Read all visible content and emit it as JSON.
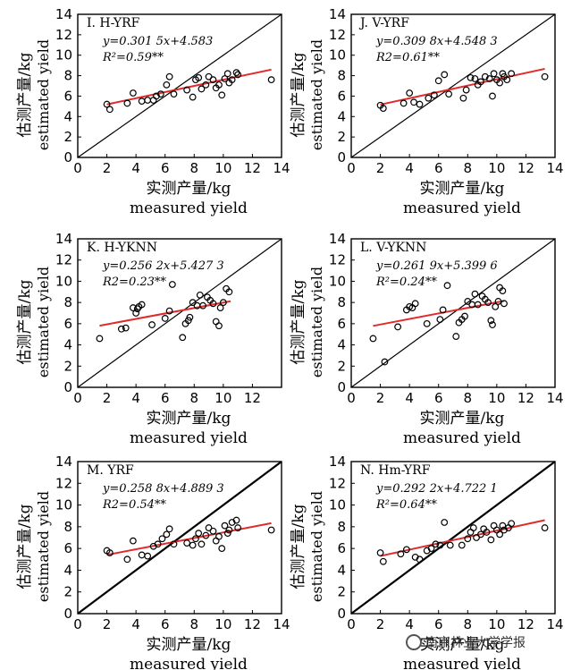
{
  "watermark": {
    "text": "南京林业大学学报",
    "icon": "wechat-icon"
  },
  "style": {
    "line_color": "#e02b2b",
    "marker_color": "#000000",
    "diag_color": "#000000"
  },
  "chart_data": [
    {
      "type": "scatter",
      "title": "I. H-YRF",
      "xlabel_zh": "实测产量/kg",
      "xlabel_en": "measured yield",
      "ylabel_zh": "估测产量/kg",
      "ylabel_en": "estimated yield",
      "xlim": [
        0,
        14
      ],
      "ylim": [
        0,
        14
      ],
      "xticks": [
        0,
        2,
        4,
        6,
        8,
        10,
        12,
        14
      ],
      "yticks": [
        0,
        2,
        4,
        6,
        8,
        10,
        12,
        14
      ],
      "equation": "y=0.301 5x+4.583",
      "r2": "R²=0.59**",
      "fit": {
        "slope": 0.3015,
        "intercept": 4.583,
        "x_range": [
          2,
          13.3
        ]
      },
      "points": [
        [
          2,
          5.2
        ],
        [
          2.2,
          4.7
        ],
        [
          3.4,
          5.3
        ],
        [
          3.8,
          6.3
        ],
        [
          4.4,
          5.5
        ],
        [
          4.8,
          5.6
        ],
        [
          5.2,
          5.6
        ],
        [
          5.4,
          6.0
        ],
        [
          5.7,
          6.2
        ],
        [
          6.1,
          7.1
        ],
        [
          6.3,
          7.9
        ],
        [
          6.6,
          6.2
        ],
        [
          7.5,
          6.6
        ],
        [
          7.9,
          5.9
        ],
        [
          8.1,
          7.6
        ],
        [
          8.3,
          7.8
        ],
        [
          8.5,
          6.7
        ],
        [
          8.8,
          7.1
        ],
        [
          9.0,
          7.9
        ],
        [
          9.3,
          7.6
        ],
        [
          9.5,
          6.8
        ],
        [
          9.7,
          7.1
        ],
        [
          9.9,
          6.1
        ],
        [
          10.1,
          7.7
        ],
        [
          10.3,
          8.2
        ],
        [
          10.4,
          7.3
        ],
        [
          10.6,
          7.6
        ],
        [
          10.9,
          8.3
        ],
        [
          11.0,
          8.1
        ],
        [
          13.3,
          7.6
        ]
      ]
    },
    {
      "type": "scatter",
      "title": "J. V-YRF",
      "xlabel_zh": "实测产量/kg",
      "xlabel_en": "measured yield",
      "ylabel_zh": "估测产量/kg",
      "ylabel_en": "estimated yield",
      "xlim": [
        0,
        14
      ],
      "ylim": [
        0,
        14
      ],
      "xticks": [
        0,
        2,
        4,
        6,
        8,
        10,
        12,
        14
      ],
      "yticks": [
        0,
        2,
        4,
        6,
        8,
        10,
        12,
        14
      ],
      "equation": "y=0.309 8x+4.548 3",
      "r2": "R2=0.61**",
      "fit": {
        "slope": 0.3098,
        "intercept": 4.5483,
        "x_range": [
          2,
          13.3
        ]
      },
      "points": [
        [
          2,
          5.1
        ],
        [
          2.2,
          4.8
        ],
        [
          3.6,
          5.3
        ],
        [
          4.0,
          6.3
        ],
        [
          4.3,
          5.4
        ],
        [
          4.7,
          5.2
        ],
        [
          5.3,
          5.8
        ],
        [
          5.7,
          6.1
        ],
        [
          6.0,
          7.5
        ],
        [
          6.4,
          8.1
        ],
        [
          6.7,
          6.2
        ],
        [
          7.7,
          5.8
        ],
        [
          7.9,
          6.6
        ],
        [
          8.2,
          7.8
        ],
        [
          8.5,
          7.7
        ],
        [
          8.7,
          7.1
        ],
        [
          8.9,
          7.4
        ],
        [
          9.2,
          7.9
        ],
        [
          9.5,
          7.7
        ],
        [
          9.7,
          6.0
        ],
        [
          9.8,
          8.2
        ],
        [
          10.0,
          7.6
        ],
        [
          10.2,
          7.3
        ],
        [
          10.4,
          8.2
        ],
        [
          10.5,
          7.9
        ],
        [
          10.7,
          7.6
        ],
        [
          11.0,
          8.2
        ],
        [
          13.3,
          7.9
        ]
      ]
    },
    {
      "type": "scatter",
      "title": "K. H-YKNN",
      "xlabel_zh": "实测产量/kg",
      "xlabel_en": "measured yield",
      "ylabel_zh": "估测产量/kg",
      "ylabel_en": "estimated yield",
      "xlim": [
        0,
        14
      ],
      "ylim": [
        0,
        14
      ],
      "xticks": [
        0,
        2,
        4,
        6,
        8,
        10,
        12
      ],
      "yticks": [
        0,
        2,
        4,
        6,
        8,
        10,
        12,
        14
      ],
      "equation": "y=0.256 2x+5.427 3",
      "r2": "R2=0.23**",
      "fit": {
        "slope": 0.2562,
        "intercept": 5.4273,
        "x_range": [
          1.5,
          10.5
        ]
      },
      "points": [
        [
          1.5,
          4.6
        ],
        [
          3.0,
          5.5
        ],
        [
          3.3,
          5.6
        ],
        [
          3.8,
          7.5
        ],
        [
          4.0,
          7.0
        ],
        [
          4.1,
          7.4
        ],
        [
          4.2,
          7.6
        ],
        [
          4.4,
          7.8
        ],
        [
          5.1,
          5.9
        ],
        [
          6.0,
          6.5
        ],
        [
          6.3,
          7.2
        ],
        [
          6.5,
          9.7
        ],
        [
          7.2,
          4.7
        ],
        [
          7.4,
          6.0
        ],
        [
          7.6,
          6.3
        ],
        [
          7.7,
          6.6
        ],
        [
          7.9,
          8.0
        ],
        [
          8.2,
          7.7
        ],
        [
          8.4,
          8.7
        ],
        [
          8.6,
          7.7
        ],
        [
          8.9,
          8.5
        ],
        [
          9.1,
          8.2
        ],
        [
          9.3,
          7.9
        ],
        [
          9.5,
          6.2
        ],
        [
          9.7,
          5.8
        ],
        [
          9.8,
          7.5
        ],
        [
          10.0,
          8.0
        ],
        [
          10.2,
          9.3
        ],
        [
          10.4,
          9.0
        ]
      ]
    },
    {
      "type": "scatter",
      "title": "L. V-YKNN",
      "xlabel_zh": "实测产量/kg",
      "xlabel_en": "measured yield",
      "ylabel_zh": "估测产量/kg",
      "ylabel_en": "estimated yield",
      "xlim": [
        0,
        14
      ],
      "ylim": [
        0,
        14
      ],
      "xticks": [
        0,
        2,
        4,
        6,
        8,
        10,
        12,
        14
      ],
      "yticks": [
        0,
        2,
        4,
        6,
        8,
        10,
        12,
        14
      ],
      "equation": "y=0.261 9x+5.399 6",
      "r2": "R²=0.24**",
      "fit": {
        "slope": 0.2619,
        "intercept": 5.3996,
        "x_range": [
          1.5,
          10.5
        ]
      },
      "points": [
        [
          1.5,
          4.6
        ],
        [
          2.3,
          2.4
        ],
        [
          3.2,
          5.7
        ],
        [
          3.8,
          7.3
        ],
        [
          4.0,
          7.6
        ],
        [
          4.2,
          7.5
        ],
        [
          4.4,
          7.9
        ],
        [
          5.2,
          6.0
        ],
        [
          6.1,
          6.4
        ],
        [
          6.3,
          7.3
        ],
        [
          6.6,
          9.6
        ],
        [
          7.2,
          4.8
        ],
        [
          7.4,
          6.1
        ],
        [
          7.6,
          6.4
        ],
        [
          7.8,
          6.7
        ],
        [
          8.0,
          8.1
        ],
        [
          8.3,
          7.8
        ],
        [
          8.5,
          8.8
        ],
        [
          8.7,
          7.8
        ],
        [
          9.0,
          8.6
        ],
        [
          9.2,
          8.3
        ],
        [
          9.4,
          8.0
        ],
        [
          9.6,
          6.3
        ],
        [
          9.7,
          5.9
        ],
        [
          9.9,
          7.6
        ],
        [
          10.1,
          8.1
        ],
        [
          10.2,
          9.4
        ],
        [
          10.4,
          9.1
        ],
        [
          10.5,
          7.9
        ]
      ]
    },
    {
      "type": "scatter",
      "title": "M. YRF",
      "xlabel_zh": "实测产量/kg",
      "xlabel_en": "measured yield",
      "ylabel_zh": "估测产量/kg",
      "ylabel_en": "estimated yield",
      "xlim": [
        0,
        14
      ],
      "ylim": [
        0,
        14
      ],
      "xticks": [
        0,
        2,
        4,
        6,
        8,
        10,
        12,
        14
      ],
      "yticks": [
        0,
        2,
        4,
        6,
        8,
        10,
        12,
        14
      ],
      "equation": "y=0.258 8x+4.889 3",
      "r2": "R2=0.54**",
      "fit": {
        "slope": 0.2588,
        "intercept": 4.8893,
        "x_range": [
          2,
          13.3
        ]
      },
      "points": [
        [
          2,
          5.8
        ],
        [
          2.2,
          5.6
        ],
        [
          3.4,
          5.0
        ],
        [
          3.8,
          6.7
        ],
        [
          4.4,
          5.4
        ],
        [
          4.8,
          5.3
        ],
        [
          5.2,
          6.2
        ],
        [
          5.5,
          6.4
        ],
        [
          5.8,
          6.9
        ],
        [
          6.1,
          7.3
        ],
        [
          6.3,
          7.8
        ],
        [
          6.6,
          6.4
        ],
        [
          7.5,
          6.5
        ],
        [
          7.9,
          6.3
        ],
        [
          8.1,
          6.9
        ],
        [
          8.3,
          7.4
        ],
        [
          8.5,
          6.4
        ],
        [
          8.8,
          7.2
        ],
        [
          9.0,
          7.9
        ],
        [
          9.3,
          7.6
        ],
        [
          9.5,
          6.7
        ],
        [
          9.7,
          7.1
        ],
        [
          9.9,
          6.0
        ],
        [
          10.1,
          8.1
        ],
        [
          10.3,
          7.4
        ],
        [
          10.4,
          7.7
        ],
        [
          10.6,
          8.4
        ],
        [
          10.9,
          8.6
        ],
        [
          11.0,
          7.9
        ],
        [
          13.3,
          7.7
        ]
      ]
    },
    {
      "type": "scatter",
      "title": "N. Hm-YRF",
      "xlabel_zh": "实测产量/kg",
      "xlabel_en": "measured yield",
      "ylabel_zh": "估测产量/kg",
      "ylabel_en": "estimated yield",
      "xlim": [
        0,
        14
      ],
      "ylim": [
        0,
        14
      ],
      "xticks": [
        0,
        2,
        4,
        6,
        8,
        10,
        12,
        14
      ],
      "yticks": [
        0,
        2,
        4,
        6,
        8,
        10,
        12,
        14
      ],
      "equation": "y=0.292 2x+4.722 1",
      "r2": "R²=0.64**",
      "fit": {
        "slope": 0.2922,
        "intercept": 4.7221,
        "x_range": [
          2,
          13.3
        ]
      },
      "points": [
        [
          2,
          5.6
        ],
        [
          2.2,
          4.8
        ],
        [
          3.4,
          5.5
        ],
        [
          3.8,
          5.9
        ],
        [
          4.4,
          5.2
        ],
        [
          4.7,
          5.0
        ],
        [
          5.2,
          5.8
        ],
        [
          5.5,
          6.0
        ],
        [
          5.8,
          6.4
        ],
        [
          6.1,
          6.3
        ],
        [
          6.4,
          8.4
        ],
        [
          6.8,
          6.3
        ],
        [
          7.6,
          6.3
        ],
        [
          8.0,
          6.9
        ],
        [
          8.2,
          7.5
        ],
        [
          8.4,
          7.9
        ],
        [
          8.6,
          7.0
        ],
        [
          8.9,
          7.3
        ],
        [
          9.1,
          7.8
        ],
        [
          9.3,
          7.5
        ],
        [
          9.6,
          6.8
        ],
        [
          9.8,
          8.1
        ],
        [
          10.0,
          7.7
        ],
        [
          10.2,
          7.3
        ],
        [
          10.4,
          8.1
        ],
        [
          10.5,
          7.7
        ],
        [
          10.8,
          7.9
        ],
        [
          11.0,
          8.3
        ],
        [
          13.3,
          7.9
        ]
      ]
    }
  ]
}
